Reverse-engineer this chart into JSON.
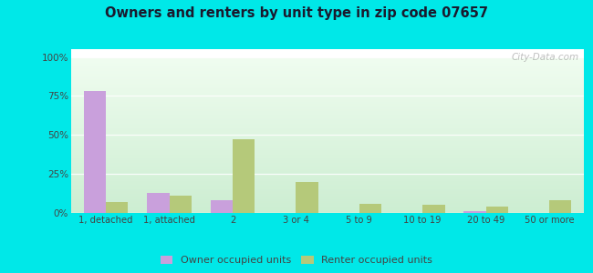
{
  "title": "Owners and renters by unit type in zip code 07657",
  "categories": [
    "1, detached",
    "1, attached",
    "2",
    "3 or 4",
    "5 to 9",
    "10 to 19",
    "20 to 49",
    "50 or more"
  ],
  "owner_values": [
    78,
    13,
    8,
    0,
    0,
    0,
    1,
    0
  ],
  "renter_values": [
    7,
    11,
    47,
    20,
    6,
    5,
    4,
    8
  ],
  "owner_color": "#c9a0dc",
  "renter_color": "#b5c97a",
  "outer_bg": "#00e8e8",
  "ylabel_ticks": [
    "0%",
    "25%",
    "50%",
    "75%",
    "100%"
  ],
  "ytick_values": [
    0,
    25,
    50,
    75,
    100
  ],
  "ylim": [
    0,
    100
  ],
  "bar_width": 0.35,
  "legend_owner": "Owner occupied units",
  "legend_renter": "Renter occupied units",
  "watermark": "City-Data.com",
  "title_color": "#1a1a2e",
  "tick_color": "#444444",
  "grid_color": "#d8d8d8"
}
